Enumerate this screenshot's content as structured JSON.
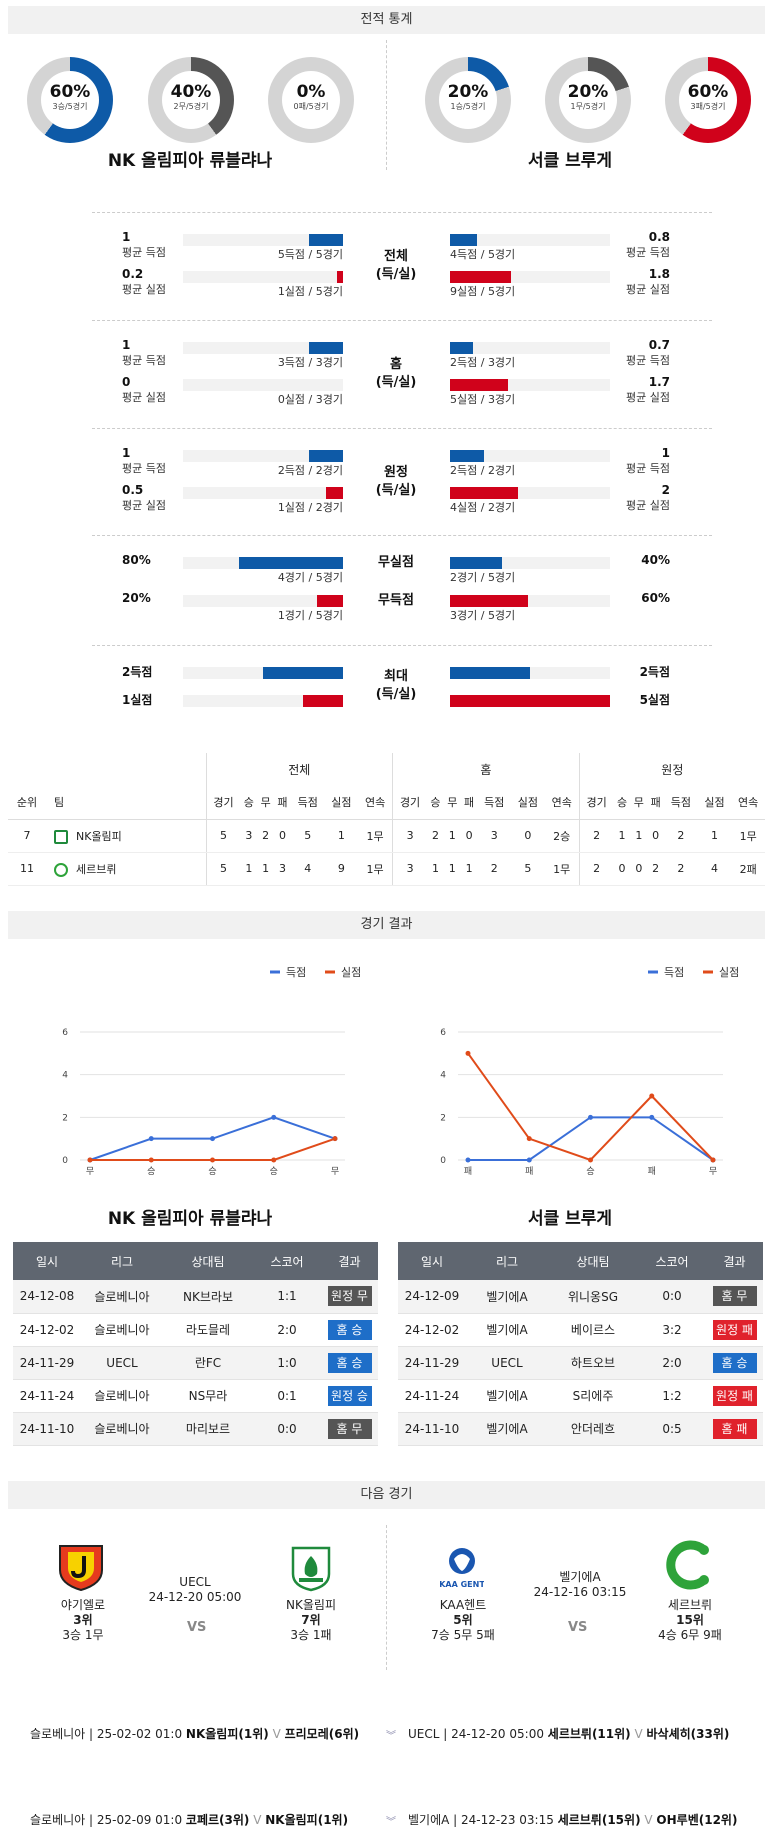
{
  "sections": {
    "stats": "전적 통계",
    "results": "경기 결과",
    "next": "다음 경기"
  },
  "home": {
    "name": "NK 올림피아 류블랴나",
    "short": "NK올림피"
  },
  "away": {
    "name": "서클 브루게",
    "short": "세르브뤼"
  },
  "donuts": [
    {
      "pct": "60%",
      "sub": "3승/5경기",
      "value": 0.6,
      "color": "#0e5aa7"
    },
    {
      "pct": "40%",
      "sub": "2무/5경기",
      "value": 0.4,
      "color": "#555555"
    },
    {
      "pct": "0%",
      "sub": "0패/5경기",
      "value": 0,
      "color": "#d0021b"
    },
    {
      "pct": "20%",
      "sub": "1승/5경기",
      "value": 0.2,
      "color": "#0e5aa7"
    },
    {
      "pct": "20%",
      "sub": "1무/5경기",
      "value": 0.2,
      "color": "#555555"
    },
    {
      "pct": "60%",
      "sub": "3패/5경기",
      "value": 0.6,
      "color": "#d0021b"
    }
  ],
  "stat_groups": [
    {
      "title": "전체\n(득/실)",
      "rows": [
        {
          "lv": "1",
          "ll": "평균 득점",
          "lc": "5득점 / 5경기",
          "lf": 0.42,
          "lcolor": "blue",
          "rv": "0.8",
          "rl": "평균 득점",
          "rc": "4득점 / 5경기",
          "rf": 0.34,
          "rcolor": "blue"
        },
        {
          "lv": "0.2",
          "ll": "평균 실점",
          "lc": "1실점 / 5경기",
          "lf": 0.08,
          "lcolor": "red",
          "rv": "1.8",
          "rl": "평균 실점",
          "rc": "9실점 / 5경기",
          "rf": 0.76,
          "rcolor": "red"
        }
      ]
    },
    {
      "title": "홈\n(득/실)",
      "rows": [
        {
          "lv": "1",
          "ll": "평균 득점",
          "lc": "3득점 / 3경기",
          "lf": 0.42,
          "lcolor": "blue",
          "rv": "0.7",
          "rl": "평균 득점",
          "rc": "2득점 / 3경기",
          "rf": 0.29,
          "rcolor": "blue"
        },
        {
          "lv": "0",
          "ll": "평균 실점",
          "lc": "0실점 / 3경기",
          "lf": 0,
          "lcolor": "red",
          "rv": "1.7",
          "rl": "평균 실점",
          "rc": "5실점 / 3경기",
          "rf": 0.72,
          "rcolor": "red"
        }
      ]
    },
    {
      "title": "원정\n(득/실)",
      "rows": [
        {
          "lv": "1",
          "ll": "평균 득점",
          "lc": "2득점 / 2경기",
          "lf": 0.42,
          "lcolor": "blue",
          "rv": "1",
          "rl": "평균 득점",
          "rc": "2득점 / 2경기",
          "rf": 0.42,
          "rcolor": "blue"
        },
        {
          "lv": "0.5",
          "ll": "평균 실점",
          "lc": "1실점 / 2경기",
          "lf": 0.21,
          "lcolor": "red",
          "rv": "2",
          "rl": "평균 실점",
          "rc": "4실점 / 2경기",
          "rf": 0.85,
          "rcolor": "red"
        }
      ]
    }
  ],
  "clean": [
    {
      "title": "무실점",
      "lv": "80%",
      "lc": "4경기 / 5경기",
      "lf": 0.8,
      "lcolor": "blue",
      "rv": "40%",
      "rc": "2경기 / 5경기",
      "rf": 0.4,
      "rcolor": "blue"
    },
    {
      "title": "무득점",
      "lv": "20%",
      "lc": "1경기 / 5경기",
      "lf": 0.2,
      "lcolor": "red",
      "rv": "60%",
      "rc": "3경기 / 5경기",
      "rf": 0.6,
      "rcolor": "red"
    }
  ],
  "max": {
    "title": "최대\n(득/실)",
    "l1": "2득점",
    "l2": "1실점",
    "r1": "2득점",
    "r2": "5실점",
    "lf1": 0.5,
    "lf2": 0.25,
    "rf1": 0.5,
    "rf2": 1.0
  },
  "standings": {
    "groups": [
      "전체",
      "홈",
      "원정"
    ],
    "cols": [
      "경기",
      "승",
      "무",
      "패",
      "득점",
      "실점",
      "연속"
    ],
    "rank_h": "순위",
    "team_h": "팀",
    "rows": [
      {
        "rank": "7",
        "team": "NK올림피",
        "vals": [
          "5",
          "3",
          "2",
          "0",
          "5",
          "1",
          "1무",
          "3",
          "2",
          "1",
          "0",
          "3",
          "0",
          "2승",
          "2",
          "1",
          "1",
          "0",
          "2",
          "1",
          "1무"
        ]
      },
      {
        "rank": "11",
        "team": "세르브뤼",
        "vals": [
          "5",
          "1",
          "1",
          "3",
          "4",
          "9",
          "1무",
          "3",
          "1",
          "1",
          "1",
          "2",
          "5",
          "1무",
          "2",
          "0",
          "0",
          "2",
          "2",
          "4",
          "2패"
        ]
      }
    ]
  },
  "charts_legend": {
    "scored": "득점",
    "conceded": "실점"
  },
  "chart_data": [
    {
      "type": "line",
      "x": [
        "무",
        "승",
        "승",
        "승",
        "무"
      ],
      "ylim": [
        0,
        6
      ],
      "yticks": [
        "0",
        "2",
        "4",
        "6"
      ],
      "series": [
        {
          "name": "득점",
          "values": [
            0,
            1,
            1,
            2,
            1
          ],
          "color": "#3a6fd8"
        },
        {
          "name": "실점",
          "values": [
            0,
            0,
            0,
            0,
            1
          ],
          "color": "#e04b1a"
        }
      ]
    },
    {
      "type": "line",
      "x": [
        "패",
        "패",
        "승",
        "패",
        "무"
      ],
      "ylim": [
        0,
        6
      ],
      "yticks": [
        "0",
        "2",
        "4",
        "6"
      ],
      "series": [
        {
          "name": "득점",
          "values": [
            0,
            0,
            2,
            2,
            0
          ],
          "color": "#3a6fd8"
        },
        {
          "name": "실점",
          "values": [
            5,
            1,
            0,
            3,
            0
          ],
          "color": "#e04b1a"
        }
      ]
    }
  ],
  "results_headers": [
    "일시",
    "리그",
    "상대팀",
    "스코어",
    "결과"
  ],
  "results_home": [
    [
      "24-12-08",
      "슬로베니아",
      "NK브라보",
      "1:1",
      "원정 무",
      "gray"
    ],
    [
      "24-12-02",
      "슬로베니아",
      "라도믈레",
      "2:0",
      "홈 승",
      "blue"
    ],
    [
      "24-11-29",
      "UECL",
      "란FC",
      "1:0",
      "홈 승",
      "blue"
    ],
    [
      "24-11-24",
      "슬로베니아",
      "NS무라",
      "0:1",
      "원정 승",
      "blue"
    ],
    [
      "24-11-10",
      "슬로베니아",
      "마리보르",
      "0:0",
      "홈 무",
      "gray"
    ]
  ],
  "results_away": [
    [
      "24-12-09",
      "벨기에A",
      "위니옹SG",
      "0:0",
      "홈 무",
      "gray"
    ],
    [
      "24-12-02",
      "벨기에A",
      "베이르스",
      "3:2",
      "원정 패",
      "red"
    ],
    [
      "24-11-29",
      "UECL",
      "하트오브",
      "2:0",
      "홈 승",
      "blue"
    ],
    [
      "24-11-24",
      "벨기에A",
      "S리에주",
      "1:2",
      "원정 패",
      "red"
    ],
    [
      "24-11-10",
      "벨기에A",
      "안더레흐",
      "0:5",
      "홈 패",
      "red"
    ]
  ],
  "next_home": {
    "l_team": "야기엘로",
    "l_rank": "3위",
    "l_rec": "3승 1무",
    "league": "UECL",
    "date": "24-12-20 05:00",
    "r_team": "NK올림피",
    "r_rank": "7위",
    "r_rec": "3승 1패",
    "vs": "VS"
  },
  "next_away": {
    "l_team": "KAA헨트",
    "l_rank": "5위",
    "l_rec": "7승 5무 5패",
    "league": "벨기에A",
    "date": "24-12-16 03:15",
    "r_team": "세르브뤼",
    "r_rank": "15위",
    "r_rec": "4승 6무 9패",
    "vs": "VS"
  },
  "fixtures": [
    {
      "l": "슬로베니아 | 25-02-02 01:0 ",
      "lt1": "NK올림피(1위)",
      "mid": " V ",
      "lt2": "프리모레(6위)",
      "r": "UECL | 24-12-20 05:00",
      "rt1": "세르브뤼(11위)",
      "rmid": " V ",
      "rt2": "바삭셰히(33위)"
    },
    {
      "l": "슬로베니아 | 25-02-09 01:0 ",
      "lt1": "코페르(3위)",
      "mid": " V ",
      "lt2": "NK올림피(1위)",
      "r": "벨기에A | 24-12-23 03:15",
      "rt1": "세르브뤼(15위)",
      "rmid": " V ",
      "rt2": "OH루벤(12위)"
    }
  ]
}
